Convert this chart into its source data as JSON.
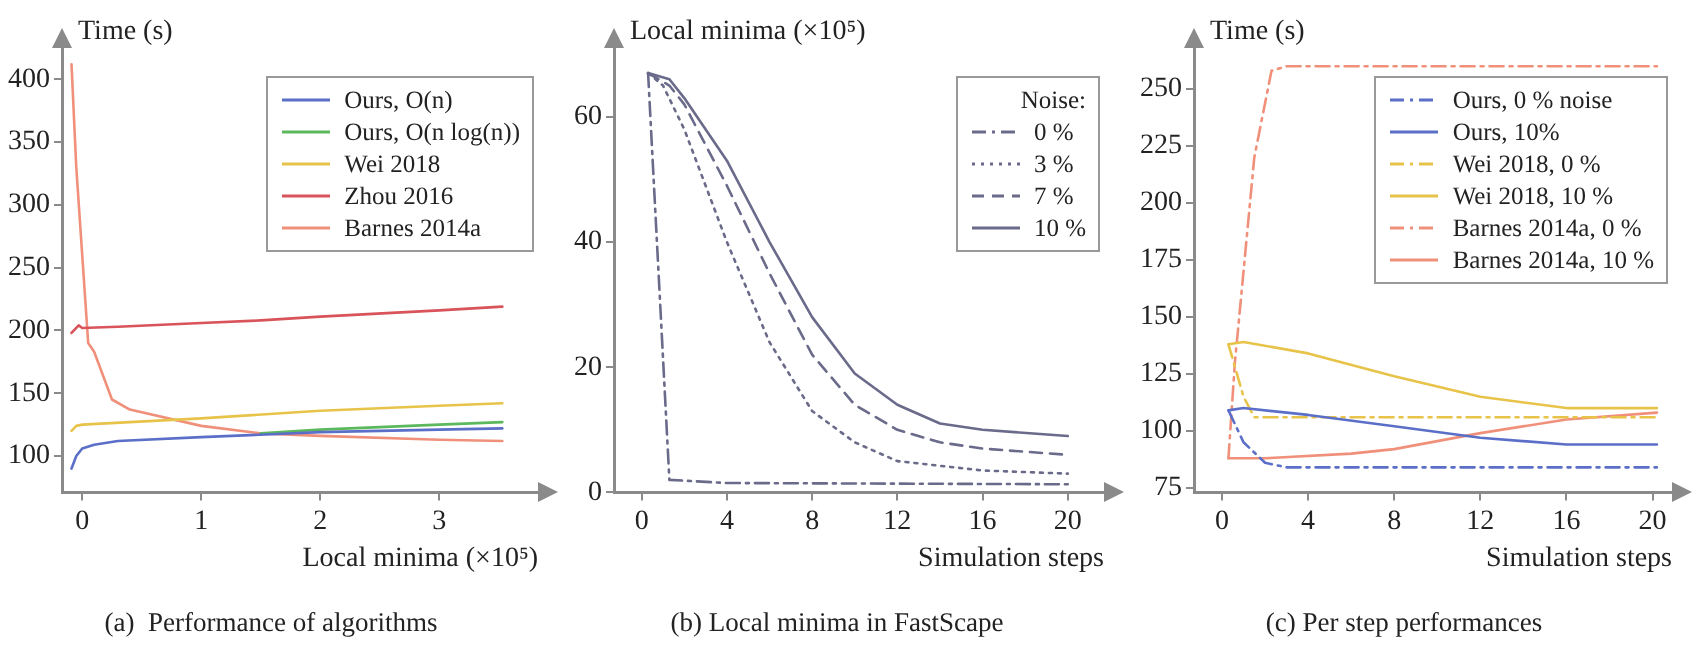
{
  "chart_data": [
    {
      "type": "line",
      "title": "(a)  Performance of algorithms",
      "xlabel": "Local minima (×10⁵)",
      "ylabel": "Time (s)",
      "xlim": [
        -0.17,
        3.83
      ],
      "xticks": [
        0,
        1,
        2,
        3
      ],
      "ylim": [
        71,
        425
      ],
      "yticks": [
        100,
        150,
        200,
        250,
        300,
        350,
        400
      ],
      "grid": false,
      "legend": "top right",
      "marker": "none",
      "line_style": "solid",
      "series": [
        {
          "name": "Ours, O(n)",
          "color": "#5b6fc8",
          "x": [
            -0.09,
            -0.05,
            0,
            0.1,
            0.3,
            1,
            2,
            3,
            3.53
          ],
          "values": [
            90,
            100,
            106,
            109,
            112,
            115,
            119,
            121,
            122
          ]
        },
        {
          "name": "Ours, O(n log(n))",
          "color": "#5cb85c",
          "x": [
            1.5,
            2,
            3,
            3.53
          ],
          "values": [
            118,
            121,
            125,
            127
          ]
        },
        {
          "name": "Wei 2018",
          "color": "#e8c34a",
          "x": [
            -0.09,
            -0.05,
            0,
            1,
            2,
            3,
            3.53
          ],
          "values": [
            120,
            124,
            125,
            130,
            136,
            140,
            142
          ]
        },
        {
          "name": "Zhou 2016",
          "color": "#d9535a",
          "x": [
            -0.09,
            -0.03,
            0,
            0.3,
            1,
            1.5,
            2,
            3,
            3.53
          ],
          "values": [
            198,
            204,
            202,
            203,
            206,
            208,
            211,
            216,
            219
          ]
        },
        {
          "name": "Barnes 2014a",
          "color": "#f0907a",
          "x": [
            -0.09,
            -0.05,
            0,
            0.05,
            0.1,
            0.25,
            0.4,
            1,
            1.5,
            2,
            3,
            3.53
          ],
          "values": [
            412,
            330,
            260,
            190,
            183,
            145,
            137,
            124,
            118,
            116,
            113,
            112
          ]
        }
      ]
    },
    {
      "type": "line",
      "title": "(b) Local minima in FastScape",
      "xlabel": "Simulation steps",
      "ylabel": "Local minima (×10⁵)",
      "legend_title": "Noise:",
      "xlim": [
        -1.3,
        21.7
      ],
      "xticks": [
        0,
        4,
        8,
        12,
        16,
        20
      ],
      "ylim": [
        0,
        71
      ],
      "yticks": [
        0,
        20,
        40,
        60
      ],
      "grid": false,
      "legend": "top right",
      "marker": "none",
      "series": [
        {
          "name": "0 %",
          "color": "#6a6a8a",
          "line_style": "dashdot",
          "x": [
            0.3,
            1.3,
            4,
            20
          ],
          "values": [
            67,
            2,
            1.5,
            1.3
          ]
        },
        {
          "name": "3 %",
          "color": "#6a6a8a",
          "line_style": "dotted",
          "x": [
            0.3,
            1,
            2,
            4,
            6,
            8,
            10,
            12,
            16,
            20
          ],
          "values": [
            67,
            65,
            58,
            40,
            24,
            13,
            8,
            5,
            3.5,
            3
          ]
        },
        {
          "name": "7 %",
          "color": "#6a6a8a",
          "line_style": "dashed",
          "x": [
            0.3,
            1.3,
            2,
            4,
            6,
            8,
            10,
            12,
            14,
            16,
            20
          ],
          "values": [
            67,
            65,
            62,
            49,
            35,
            22,
            14,
            10,
            8,
            7,
            6
          ]
        },
        {
          "name": "10 %",
          "color": "#6a6a8a",
          "line_style": "solid",
          "x": [
            0.3,
            1.3,
            2,
            4,
            6,
            8,
            10,
            12,
            14,
            16,
            20
          ],
          "values": [
            67,
            66,
            63,
            53,
            40,
            28,
            19,
            14,
            11,
            10,
            9
          ]
        }
      ]
    },
    {
      "type": "line",
      "title": "(c) Per step performances",
      "xlabel": "Simulation steps",
      "ylabel": "Time (s)",
      "xlim": [
        -1.3,
        20.9
      ],
      "xticks": [
        0,
        4,
        8,
        12,
        16,
        20
      ],
      "ylim": [
        73,
        268
      ],
      "yticks": [
        75,
        100,
        125,
        150,
        175,
        200,
        225,
        250
      ],
      "grid": false,
      "legend": "top right",
      "marker": "none",
      "series": [
        {
          "name": "Ours,  0 % noise",
          "color": "#5b6fc8",
          "line_style": "dashdot",
          "x": [
            0.3,
            1,
            2,
            3,
            20.2
          ],
          "values": [
            109,
            95,
            86,
            84,
            84
          ]
        },
        {
          "name": "Ours,  10%",
          "color": "#5b6fc8",
          "line_style": "solid",
          "x": [
            0.3,
            1,
            4,
            8,
            12,
            16,
            20.2
          ],
          "values": [
            109,
            110,
            107,
            102,
            97,
            94,
            94
          ]
        },
        {
          "name": "Wei 2018,  0 %",
          "color": "#e8c34a",
          "line_style": "dashdot",
          "x": [
            0.3,
            1,
            1.5,
            4,
            20.2
          ],
          "values": [
            138,
            115,
            106,
            106,
            106
          ]
        },
        {
          "name": "Wei 2018, 10 %",
          "color": "#e8c34a",
          "line_style": "solid",
          "x": [
            0.3,
            1,
            4,
            8,
            12,
            16,
            20.2
          ],
          "values": [
            138,
            139,
            134,
            124,
            115,
            110,
            110
          ]
        },
        {
          "name": "Barnes 2014a,  0 %",
          "color": "#f0907a",
          "line_style": "dashdot",
          "x": [
            0.3,
            0.6,
            1,
            1.5,
            2.3,
            3,
            20.2
          ],
          "values": [
            88,
            130,
            170,
            220,
            258,
            260,
            260
          ]
        },
        {
          "name": "Barnes 2014a, 10 %",
          "color": "#f0907a",
          "line_style": "solid",
          "x": [
            0.3,
            2,
            6,
            8,
            12,
            16,
            20.2
          ],
          "values": [
            88,
            88,
            90,
            92,
            99,
            105,
            108
          ]
        }
      ]
    }
  ]
}
